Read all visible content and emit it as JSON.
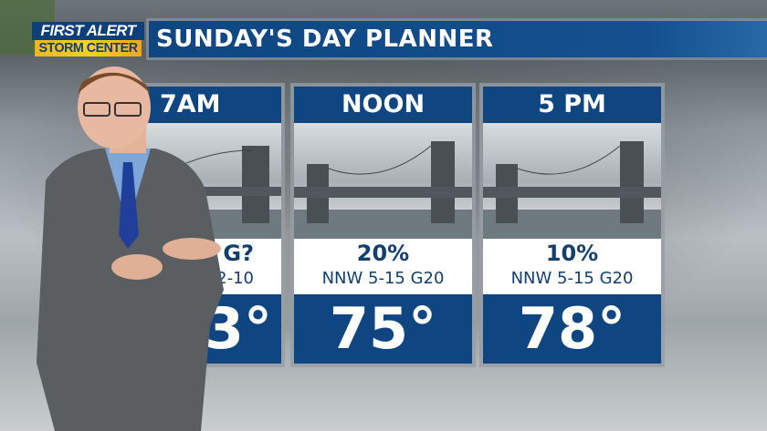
{
  "logo": {
    "line1": "FIRST ALERT",
    "line2": "STORM CENTER"
  },
  "title": "SUNDAY'S DAY PLANNER",
  "panels": [
    {
      "time": "7AM",
      "precip": "G?",
      "wind": "W 2-10",
      "temp": "3°",
      "note": "partially hidden by presenter"
    },
    {
      "time": "NOON",
      "precip": "20%",
      "wind": "NNW 5-15 G20",
      "temp": "75°"
    },
    {
      "time": "5 PM",
      "precip": "10%",
      "wind": "NNW 5-15 G20",
      "temp": "78°"
    }
  ],
  "colors": {
    "brand_blue": "#0f4682",
    "alert_yellow": "#f7d21e",
    "text_blue": "#133f6e"
  }
}
